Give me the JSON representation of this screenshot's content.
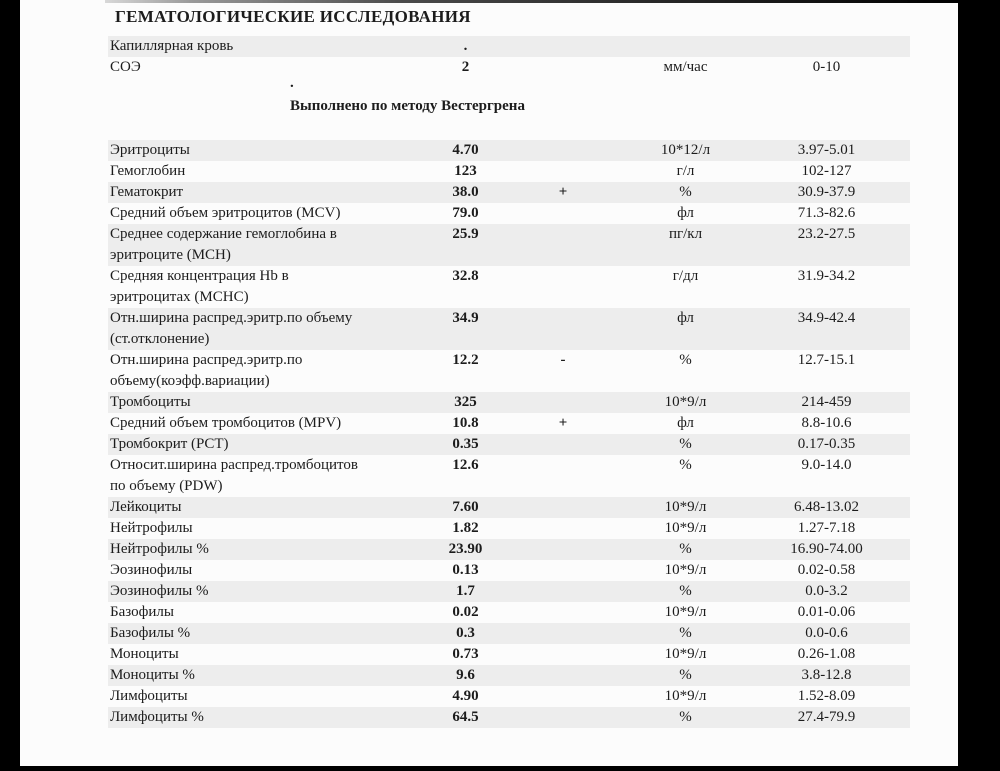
{
  "header": {
    "title": "ГЕМАТОЛОГИЧЕСКИЕ ИССЛЕДОВАНИЯ"
  },
  "notes": {
    "dot": ".",
    "method": "Выполнено по методу Вестергрена"
  },
  "sample_section": {
    "rows": [
      {
        "name": "Капиллярная кровь",
        "value": ".",
        "flag": "",
        "unit": "",
        "range": "",
        "shaded": true
      },
      {
        "name": "СОЭ",
        "value": "2",
        "flag": "",
        "unit": "мм/час",
        "range": "0-10",
        "shaded": false
      }
    ]
  },
  "results": {
    "rows": [
      {
        "name": "Эритроциты",
        "value": "4.70",
        "flag": "",
        "unit": "10*12/л",
        "range": "3.97-5.01",
        "shaded": true
      },
      {
        "name": "Гемоглобин",
        "value": "123",
        "flag": "",
        "unit": "г/л",
        "range": "102-127",
        "shaded": false
      },
      {
        "name": "Гематокрит",
        "value": "38.0",
        "flag": "+",
        "unit": "%",
        "range": "30.9-37.9",
        "shaded": true
      },
      {
        "name": "Средний объем эритроцитов (MCV)",
        "value": "79.0",
        "flag": "",
        "unit": "фл",
        "range": "71.3-82.6",
        "shaded": false
      },
      {
        "name": "Среднее содержание гемоглобина в\nэритроците (MCH)",
        "value": "25.9",
        "flag": "",
        "unit": "пг/кл",
        "range": "23.2-27.5",
        "shaded": true
      },
      {
        "name": "Средняя концентрация Hb в\nэритроцитах (MCHC)",
        "value": "32.8",
        "flag": "",
        "unit": "г/дл",
        "range": "31.9-34.2",
        "shaded": false
      },
      {
        "name": "Отн.ширина распред.эритр.по объему\n(ст.отклонение)",
        "value": "34.9",
        "flag": "",
        "unit": "фл",
        "range": "34.9-42.4",
        "shaded": true
      },
      {
        "name": "Отн.ширина распред.эритр.по\nобъему(коэфф.вариации)",
        "value": "12.2",
        "flag": "-",
        "unit": "%",
        "range": "12.7-15.1",
        "shaded": false
      },
      {
        "name": "Тромбоциты",
        "value": "325",
        "flag": "",
        "unit": "10*9/л",
        "range": "214-459",
        "shaded": true
      },
      {
        "name": "Средний объем тромбоцитов (MPV)",
        "value": "10.8",
        "flag": "+",
        "unit": "фл",
        "range": "8.8-10.6",
        "shaded": false
      },
      {
        "name": "Тромбокрит (PCT)",
        "value": "0.35",
        "flag": "",
        "unit": "%",
        "range": "0.17-0.35",
        "shaded": true
      },
      {
        "name": "Относит.ширина распред.тромбоцитов\nпо объему (PDW)",
        "value": "12.6",
        "flag": "",
        "unit": "%",
        "range": "9.0-14.0",
        "shaded": false
      },
      {
        "name": "Лейкоциты",
        "value": "7.60",
        "flag": "",
        "unit": "10*9/л",
        "range": "6.48-13.02",
        "shaded": true
      },
      {
        "name": "Нейтрофилы",
        "value": "1.82",
        "flag": "",
        "unit": "10*9/л",
        "range": "1.27-7.18",
        "shaded": false
      },
      {
        "name": "Нейтрофилы %",
        "value": "23.90",
        "flag": "",
        "unit": "%",
        "range": "16.90-74.00",
        "shaded": true
      },
      {
        "name": "Эозинофилы",
        "value": "0.13",
        "flag": "",
        "unit": "10*9/л",
        "range": "0.02-0.58",
        "shaded": false
      },
      {
        "name": "Эозинофилы %",
        "value": "1.7",
        "flag": "",
        "unit": "%",
        "range": "0.0-3.2",
        "shaded": true
      },
      {
        "name": "Базофилы",
        "value": "0.02",
        "flag": "",
        "unit": "10*9/л",
        "range": "0.01-0.06",
        "shaded": false
      },
      {
        "name": "Базофилы %",
        "value": "0.3",
        "flag": "",
        "unit": "%",
        "range": "0.0-0.6",
        "shaded": true
      },
      {
        "name": "Моноциты",
        "value": "0.73",
        "flag": "",
        "unit": "10*9/л",
        "range": "0.26-1.08",
        "shaded": false
      },
      {
        "name": "Моноциты %",
        "value": "9.6",
        "flag": "",
        "unit": "%",
        "range": "3.8-12.8",
        "shaded": true
      },
      {
        "name": "Лимфоциты",
        "value": "4.90",
        "flag": "",
        "unit": "10*9/л",
        "range": "1.52-8.09",
        "shaded": false
      },
      {
        "name": "Лимфоциты %",
        "value": "64.5",
        "flag": "",
        "unit": "%",
        "range": "27.4-79.9",
        "shaded": true
      }
    ]
  },
  "colors": {
    "row_shade": "#ededed",
    "text": "#1c1c1c",
    "page_background": "#fcfcfc",
    "frame": "#000000"
  }
}
